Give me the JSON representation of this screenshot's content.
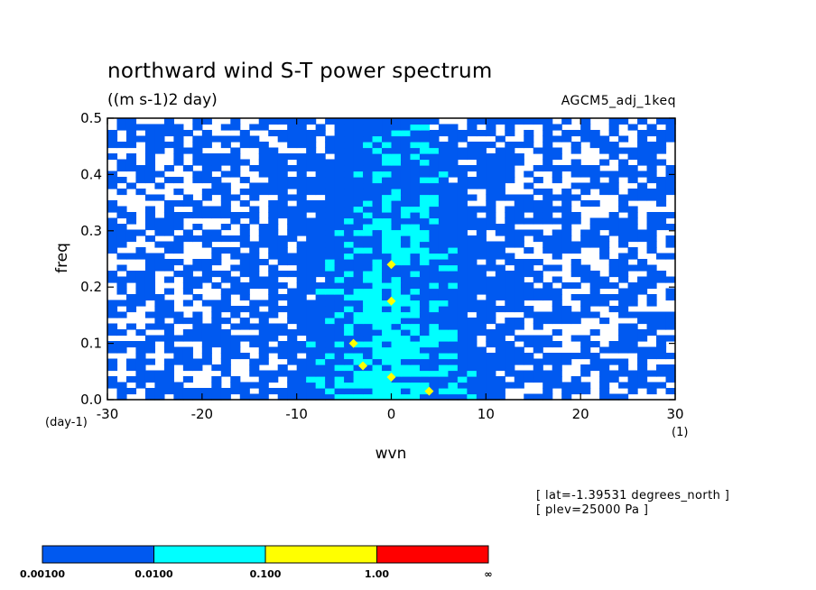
{
  "header": {
    "title": "northward wind S-T power spectrum",
    "units": "((m s-1)2 day)",
    "model": "AGCM5_adj_1keq"
  },
  "footer": {
    "lat": "[ lat=-1.39531 degrees_north ]",
    "plev": "[ plev=25000 Pa ]"
  },
  "colors": {
    "background": "#ffffff",
    "level1": "#0059f0",
    "level2": "#00ffff",
    "level3": "#ffff00",
    "level4": "#ff0000"
  },
  "chart_data": {
    "type": "heatmap",
    "title": "northward wind S-T power spectrum",
    "subtitle": "((m s-1)2 day)",
    "xlabel": "wvn",
    "ylabel": "freq",
    "x_unit": "(1)",
    "y_unit": "(day-1)",
    "xlim": [
      -30,
      30
    ],
    "ylim": [
      0.0,
      0.5
    ],
    "x_ticks": [
      -30,
      -20,
      -10,
      0,
      10,
      20,
      30
    ],
    "x_tick_labels": [
      "-30",
      "-20",
      "-10",
      "0",
      "10",
      "20",
      "30"
    ],
    "y_ticks": [
      0.0,
      0.1,
      0.2,
      0.3,
      0.4,
      0.5
    ],
    "y_tick_labels": [
      "0.0",
      "0.1",
      "0.2",
      "0.3",
      "0.4",
      "0.5"
    ],
    "colorbar": {
      "levels": [
        "0.00100",
        "0.0100",
        "0.100",
        "1.00",
        "∞"
      ],
      "colors": [
        "#0059f0",
        "#00ffff",
        "#ffff00",
        "#ff0000"
      ]
    },
    "yellow_maxima": [
      {
        "wvn": 0,
        "freq": 0.24
      },
      {
        "wvn": 0,
        "freq": 0.175
      },
      {
        "wvn": -4,
        "freq": 0.1
      },
      {
        "wvn": -3,
        "freq": 0.06
      },
      {
        "wvn": 0,
        "freq": 0.04
      },
      {
        "wvn": 4,
        "freq": 0.015
      }
    ]
  }
}
